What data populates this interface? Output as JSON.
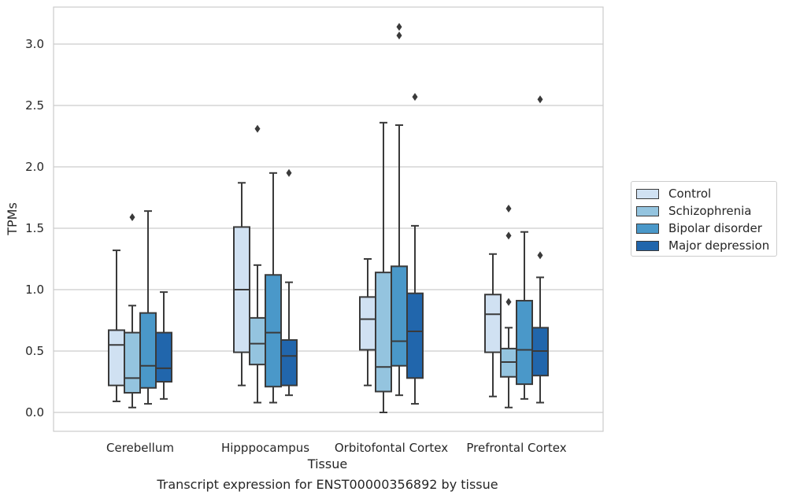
{
  "chart_data": {
    "type": "boxplot",
    "xlabel": "Tissue",
    "ylabel": "TPMs",
    "ylim": [
      -0.15,
      3.3
    ],
    "yticks": [
      0.0,
      0.5,
      1.0,
      1.5,
      2.0,
      2.5,
      3.0
    ],
    "ytick_labels": [
      "0.0",
      "0.5",
      "1.0",
      "1.5",
      "2.0",
      "2.5",
      "3.0"
    ],
    "grid": "horizontal",
    "legend_position": "outside-right",
    "categories": [
      "Cerebellum",
      "Hipppocampus",
      "Orbitofontal Cortex",
      "Prefrontal Cortex"
    ],
    "series": [
      {
        "name": "Control",
        "color": "#d0e1f2",
        "boxes": [
          {
            "whisker_low": 0.09,
            "q1": 0.22,
            "median": 0.55,
            "q3": 0.67,
            "whisker_high": 1.32,
            "outliers": []
          },
          {
            "whisker_low": 0.22,
            "q1": 0.49,
            "median": 1.0,
            "q3": 1.51,
            "whisker_high": 1.87,
            "outliers": []
          },
          {
            "whisker_low": 0.22,
            "q1": 0.51,
            "median": 0.76,
            "q3": 0.94,
            "whisker_high": 1.25,
            "outliers": []
          },
          {
            "whisker_low": 0.13,
            "q1": 0.49,
            "median": 0.8,
            "q3": 0.96,
            "whisker_high": 1.29,
            "outliers": []
          }
        ]
      },
      {
        "name": "Schizophrenia",
        "color": "#94c4df",
        "boxes": [
          {
            "whisker_low": 0.04,
            "q1": 0.16,
            "median": 0.28,
            "q3": 0.65,
            "whisker_high": 0.87,
            "outliers": [
              1.59
            ]
          },
          {
            "whisker_low": 0.08,
            "q1": 0.39,
            "median": 0.56,
            "q3": 0.77,
            "whisker_high": 1.2,
            "outliers": [
              2.31
            ]
          },
          {
            "whisker_low": 0.0,
            "q1": 0.17,
            "median": 0.37,
            "q3": 1.14,
            "whisker_high": 2.36,
            "outliers": []
          },
          {
            "whisker_low": 0.04,
            "q1": 0.29,
            "median": 0.41,
            "q3": 0.52,
            "whisker_high": 0.69,
            "outliers": [
              0.9,
              1.44,
              1.66
            ]
          }
        ]
      },
      {
        "name": "Bipolar disorder",
        "color": "#4a98c9",
        "boxes": [
          {
            "whisker_low": 0.07,
            "q1": 0.2,
            "median": 0.38,
            "q3": 0.81,
            "whisker_high": 1.64,
            "outliers": []
          },
          {
            "whisker_low": 0.08,
            "q1": 0.21,
            "median": 0.65,
            "q3": 1.12,
            "whisker_high": 1.95,
            "outliers": []
          },
          {
            "whisker_low": 0.14,
            "q1": 0.38,
            "median": 0.58,
            "q3": 1.19,
            "whisker_high": 2.34,
            "outliers": [
              3.07,
              3.14
            ]
          },
          {
            "whisker_low": 0.11,
            "q1": 0.23,
            "median": 0.51,
            "q3": 0.91,
            "whisker_high": 1.47,
            "outliers": []
          }
        ]
      },
      {
        "name": "Major depression",
        "color": "#2166ac",
        "boxes": [
          {
            "whisker_low": 0.11,
            "q1": 0.25,
            "median": 0.36,
            "q3": 0.65,
            "whisker_high": 0.98,
            "outliers": []
          },
          {
            "whisker_low": 0.14,
            "q1": 0.22,
            "median": 0.46,
            "q3": 0.59,
            "whisker_high": 1.06,
            "outliers": [
              1.95
            ]
          },
          {
            "whisker_low": 0.07,
            "q1": 0.28,
            "median": 0.66,
            "q3": 0.97,
            "whisker_high": 1.52,
            "outliers": [
              2.57
            ]
          },
          {
            "whisker_low": 0.08,
            "q1": 0.3,
            "median": 0.5,
            "q3": 0.69,
            "whisker_high": 1.1,
            "outliers": [
              1.28,
              2.55
            ]
          }
        ]
      }
    ]
  },
  "caption": "Transcript expression for ENST00000356892 by tissue"
}
